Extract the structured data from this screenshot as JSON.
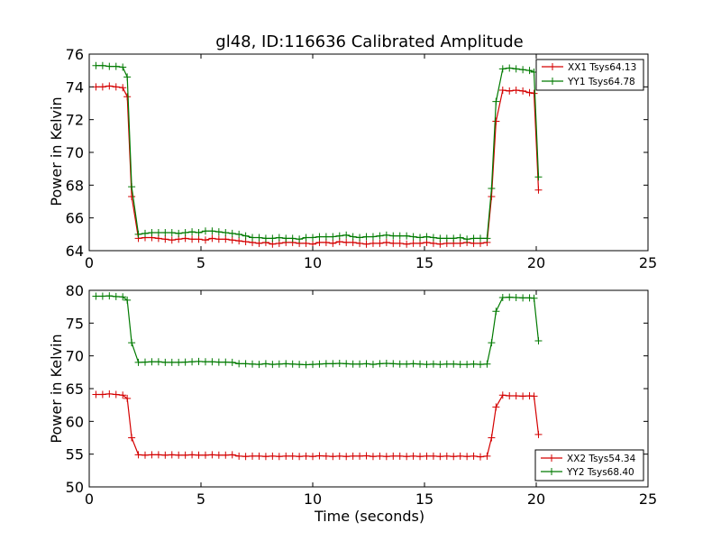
{
  "colors": {
    "xx": "#d40000",
    "yy": "#007a00",
    "axis": "#000000"
  },
  "chart_data": [
    {
      "type": "line",
      "title": "gl48, ID:116636 Calibrated Amplitude",
      "xlabel": "",
      "ylabel": "Power in Kelvin",
      "xlim": [
        0,
        25
      ],
      "ylim": [
        64,
        76
      ],
      "xticks": [
        0,
        5,
        10,
        15,
        20,
        25
      ],
      "yticks": [
        64,
        66,
        68,
        70,
        72,
        74,
        76
      ],
      "grid": false,
      "legend_position": "top-right",
      "x": [
        0.3,
        0.6,
        0.9,
        1.2,
        1.5,
        1.7,
        1.9,
        2.2,
        2.5,
        2.8,
        3.1,
        3.4,
        3.7,
        4.0,
        4.3,
        4.6,
        4.9,
        5.2,
        5.5,
        5.8,
        6.1,
        6.4,
        6.7,
        7.0,
        7.3,
        7.6,
        7.9,
        8.2,
        8.5,
        8.8,
        9.1,
        9.4,
        9.7,
        10.0,
        10.3,
        10.6,
        10.9,
        11.2,
        11.5,
        11.8,
        12.1,
        12.4,
        12.7,
        13.0,
        13.3,
        13.6,
        13.9,
        14.2,
        14.5,
        14.8,
        15.1,
        15.4,
        15.7,
        16.0,
        16.3,
        16.6,
        16.9,
        17.2,
        17.5,
        17.8,
        18.0,
        18.2,
        18.5,
        18.8,
        19.1,
        19.4,
        19.7,
        19.9,
        20.1
      ],
      "series": [
        {
          "name": "XX1 Tsys64.13",
          "color_key": "xx",
          "values": [
            74.0,
            74.0,
            74.05,
            74.0,
            73.95,
            73.4,
            67.3,
            64.75,
            64.8,
            64.8,
            64.75,
            64.7,
            64.65,
            64.7,
            64.75,
            64.7,
            64.7,
            64.65,
            64.75,
            64.7,
            64.7,
            64.65,
            64.6,
            64.55,
            64.5,
            64.45,
            64.5,
            64.4,
            64.45,
            64.5,
            64.5,
            64.45,
            64.45,
            64.4,
            64.5,
            64.5,
            64.45,
            64.55,
            64.5,
            64.5,
            64.45,
            64.4,
            64.45,
            64.45,
            64.5,
            64.45,
            64.45,
            64.4,
            64.45,
            64.45,
            64.5,
            64.45,
            64.4,
            64.45,
            64.45,
            64.45,
            64.5,
            64.45,
            64.45,
            64.5,
            67.3,
            71.9,
            73.8,
            73.75,
            73.8,
            73.75,
            73.65,
            73.6,
            67.7
          ]
        },
        {
          "name": "YY1 Tsys64.78",
          "color_key": "yy",
          "values": [
            75.3,
            75.3,
            75.25,
            75.25,
            75.2,
            74.6,
            67.9,
            65.0,
            65.05,
            65.1,
            65.1,
            65.1,
            65.1,
            65.05,
            65.1,
            65.15,
            65.1,
            65.2,
            65.2,
            65.15,
            65.1,
            65.05,
            65.0,
            64.9,
            64.8,
            64.8,
            64.75,
            64.75,
            64.8,
            64.75,
            64.75,
            64.7,
            64.8,
            64.8,
            64.85,
            64.85,
            64.85,
            64.9,
            64.95,
            64.85,
            64.8,
            64.85,
            64.85,
            64.9,
            64.95,
            64.9,
            64.9,
            64.9,
            64.85,
            64.8,
            64.85,
            64.8,
            64.75,
            64.75,
            64.75,
            64.8,
            64.7,
            64.75,
            64.75,
            64.75,
            67.8,
            73.1,
            75.1,
            75.15,
            75.1,
            75.05,
            75.0,
            74.9,
            68.5
          ]
        }
      ]
    },
    {
      "type": "line",
      "title": "",
      "xlabel": "Time (seconds)",
      "ylabel": "Power in Kelvin",
      "xlim": [
        0,
        25
      ],
      "ylim": [
        50,
        80
      ],
      "xticks": [
        0,
        5,
        10,
        15,
        20,
        25
      ],
      "yticks": [
        50,
        55,
        60,
        65,
        70,
        75,
        80
      ],
      "grid": false,
      "legend_position": "bottom-right",
      "x": [
        0.3,
        0.6,
        0.9,
        1.2,
        1.5,
        1.7,
        1.9,
        2.2,
        2.5,
        2.8,
        3.1,
        3.4,
        3.7,
        4.0,
        4.3,
        4.6,
        4.9,
        5.2,
        5.5,
        5.8,
        6.1,
        6.4,
        6.7,
        7.0,
        7.3,
        7.6,
        7.9,
        8.2,
        8.5,
        8.8,
        9.1,
        9.4,
        9.7,
        10.0,
        10.3,
        10.6,
        10.9,
        11.2,
        11.5,
        11.8,
        12.1,
        12.4,
        12.7,
        13.0,
        13.3,
        13.6,
        13.9,
        14.2,
        14.5,
        14.8,
        15.1,
        15.4,
        15.7,
        16.0,
        16.3,
        16.6,
        16.9,
        17.2,
        17.5,
        17.8,
        18.0,
        18.2,
        18.5,
        18.8,
        19.1,
        19.4,
        19.7,
        19.9,
        20.1
      ],
      "series": [
        {
          "name": "XX2 Tsys54.34",
          "color_key": "xx",
          "values": [
            64.1,
            64.1,
            64.2,
            64.1,
            64.0,
            63.5,
            57.5,
            54.9,
            54.85,
            54.9,
            54.9,
            54.85,
            54.9,
            54.85,
            54.85,
            54.9,
            54.85,
            54.85,
            54.9,
            54.85,
            54.85,
            54.9,
            54.7,
            54.65,
            54.7,
            54.7,
            54.65,
            54.7,
            54.65,
            54.7,
            54.7,
            54.65,
            54.7,
            54.65,
            54.75,
            54.7,
            54.65,
            54.7,
            54.65,
            54.7,
            54.7,
            54.75,
            54.65,
            54.7,
            54.65,
            54.7,
            54.7,
            54.65,
            54.7,
            54.65,
            54.7,
            54.7,
            54.65,
            54.7,
            54.65,
            54.7,
            54.65,
            54.7,
            54.6,
            54.7,
            57.5,
            62.2,
            64.0,
            63.9,
            63.9,
            63.85,
            63.9,
            63.85,
            58.0
          ]
        },
        {
          "name": "YY2 Tsys68.40",
          "color_key": "yy",
          "values": [
            79.1,
            79.1,
            79.15,
            79.05,
            79.0,
            78.5,
            72.0,
            69.0,
            69.05,
            69.1,
            69.1,
            69.0,
            69.0,
            69.0,
            69.05,
            69.1,
            69.15,
            69.1,
            69.1,
            69.05,
            69.05,
            69.0,
            68.8,
            68.8,
            68.75,
            68.7,
            68.8,
            68.7,
            68.75,
            68.8,
            68.75,
            68.7,
            68.65,
            68.7,
            68.75,
            68.8,
            68.8,
            68.85,
            68.8,
            68.75,
            68.75,
            68.8,
            68.7,
            68.8,
            68.85,
            68.8,
            68.75,
            68.75,
            68.8,
            68.75,
            68.7,
            68.75,
            68.7,
            68.75,
            68.75,
            68.7,
            68.7,
            68.75,
            68.7,
            68.75,
            72.0,
            76.8,
            78.9,
            78.95,
            78.9,
            78.85,
            78.85,
            78.8,
            72.3
          ]
        }
      ]
    }
  ]
}
